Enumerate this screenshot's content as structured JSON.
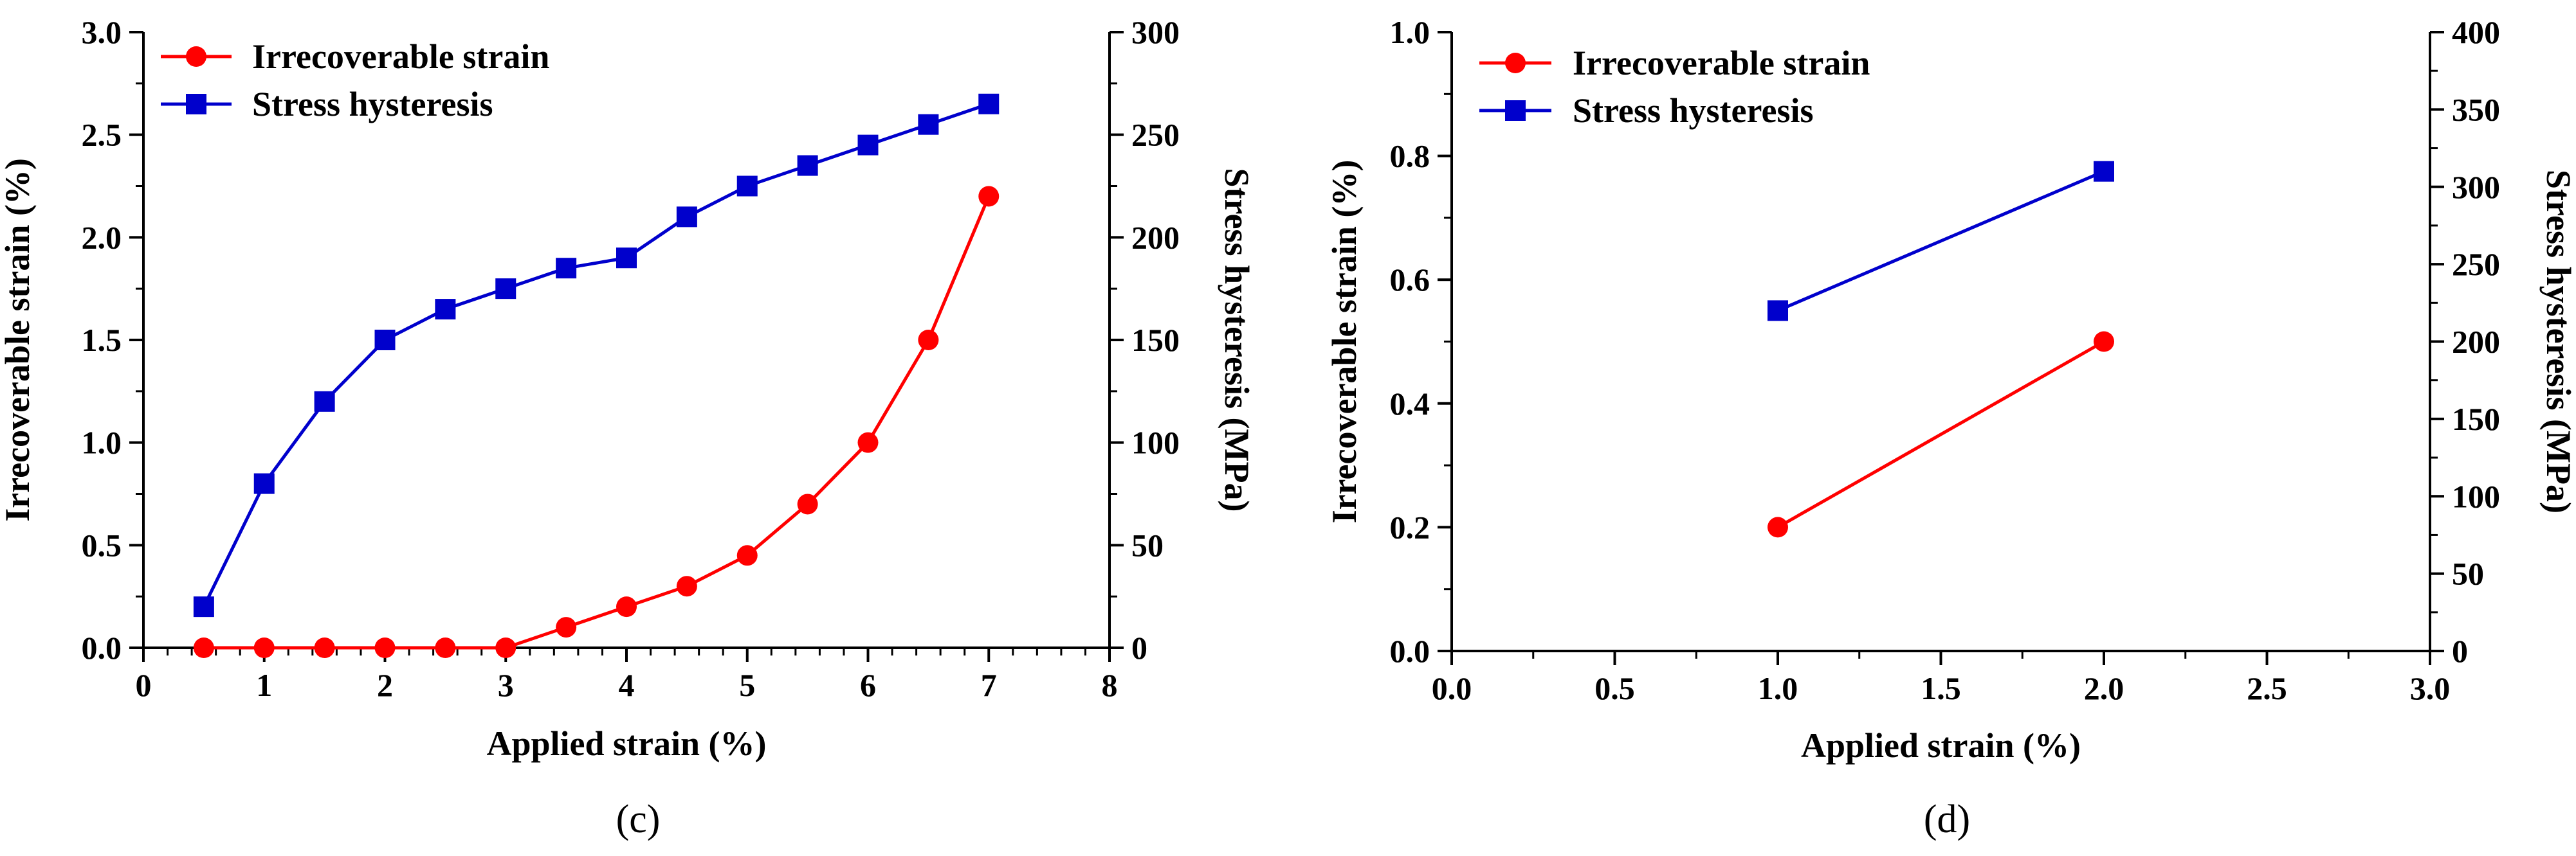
{
  "colors": {
    "irrecoverable": "#ff0000",
    "stress": "#0000cc",
    "axis": "#000000"
  },
  "chart_data": [
    {
      "panel_label": "(c)",
      "type": "line",
      "xlabel": "Applied strain (%)",
      "ylabel_left": "Irrecoverable strain (%)",
      "ylabel_right": "Stress hysteresis (MPa)",
      "xlim": [
        0,
        8
      ],
      "ylim_left": [
        0,
        3.0
      ],
      "ylim_right": [
        0,
        300
      ],
      "x_ticks": [
        "0",
        "1",
        "2",
        "3",
        "4",
        "5",
        "6",
        "7",
        "8"
      ],
      "y_left_ticks": [
        "0.0",
        "0.5",
        "1.0",
        "1.5",
        "2.0",
        "2.5",
        "3.0"
      ],
      "y_right_ticks": [
        "0",
        "50",
        "100",
        "150",
        "200",
        "250",
        "300"
      ],
      "legend": [
        "Irrecoverable strain",
        "Stress hysteresis"
      ],
      "legend_position": "top-left",
      "series": [
        {
          "name": "Irrecoverable strain",
          "axis": "left",
          "marker": "circle",
          "x": [
            0.5,
            1,
            1.5,
            2,
            2.5,
            3,
            3.5,
            4,
            4.5,
            5,
            5.5,
            6,
            6.5,
            7
          ],
          "y": [
            0,
            0,
            0,
            0,
            0,
            0,
            0.1,
            0.2,
            0.3,
            0.45,
            0.7,
            1.0,
            1.5,
            2.2
          ]
        },
        {
          "name": "Stress hysteresis",
          "axis": "right",
          "marker": "square",
          "x": [
            0.5,
            1,
            1.5,
            2,
            2.5,
            3,
            3.5,
            4,
            4.5,
            5,
            5.5,
            6,
            6.5,
            7
          ],
          "y": [
            20,
            80,
            120,
            150,
            165,
            175,
            185,
            190,
            210,
            225,
            235,
            245,
            255,
            265
          ]
        }
      ]
    },
    {
      "panel_label": "(d)",
      "type": "line",
      "xlabel": "Applied strain (%)",
      "ylabel_left": "Irrecoverable strain (%)",
      "ylabel_right": "Stress hysteresis (MPa)",
      "xlim": [
        0,
        3.0
      ],
      "ylim_left": [
        0,
        1.0
      ],
      "ylim_right": [
        0,
        400
      ],
      "x_ticks": [
        "0.0",
        "0.5",
        "1.0",
        "1.5",
        "2.0",
        "2.5",
        "3.0"
      ],
      "y_left_ticks": [
        "0.0",
        "0.2",
        "0.4",
        "0.6",
        "0.8",
        "1.0"
      ],
      "y_right_ticks": [
        "0",
        "50",
        "100",
        "150",
        "200",
        "250",
        "300",
        "350",
        "400"
      ],
      "legend": [
        "Irrecoverable strain",
        "Stress hysteresis"
      ],
      "legend_position": "top-left",
      "series": [
        {
          "name": "Irrecoverable strain",
          "axis": "left",
          "marker": "circle",
          "x": [
            1,
            2
          ],
          "y": [
            0.2,
            0.5
          ]
        },
        {
          "name": "Stress hysteresis",
          "axis": "right",
          "marker": "square",
          "x": [
            1,
            2
          ],
          "y": [
            220,
            310
          ]
        }
      ]
    }
  ]
}
